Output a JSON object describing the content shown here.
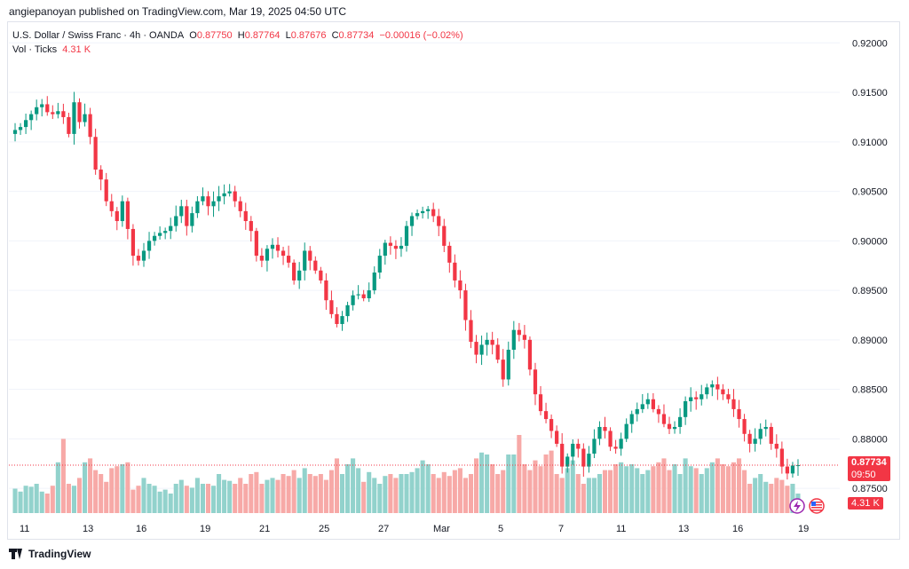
{
  "publisher_line": "angiepanoyan published on TradingView.com, Mar 19, 2025 04:50 UTC",
  "legend": {
    "symbol": "U.S. Dollar / Swiss Franc · 4h · OANDA",
    "o_label": "O",
    "o_value": "0.87750",
    "h_label": "H",
    "h_value": "0.87764",
    "l_label": "L",
    "l_value": "0.87676",
    "c_label": "C",
    "c_value": "0.87734",
    "change": "−0.00016 (−0.02%)",
    "vol_label": "Vol · Ticks",
    "vol_value": "4.31 K"
  },
  "footer": {
    "brand": "TradingView"
  },
  "badges": {
    "price": "0.87734",
    "time": "09:50",
    "volume": "4.31 K"
  },
  "colors": {
    "up": "#089981",
    "down": "#f23645",
    "up_vol": "#92d2cc",
    "down_vol": "#f7a9a7",
    "grid": "#f0f3fa"
  },
  "icons": [
    "lightning-icon",
    "us-flag-icon"
  ],
  "chart_data": {
    "type": "candlestick",
    "timeframe": "4h",
    "y_axis": {
      "ylim": [
        0.8725,
        0.922
      ],
      "ticks": [
        "0.92000",
        "0.91500",
        "0.91000",
        "0.90500",
        "0.90000",
        "0.89500",
        "0.89000",
        "0.88500",
        "0.88000",
        "0.87500"
      ]
    },
    "x_axis": {
      "ticks": [
        "11",
        "13",
        "16",
        "19",
        "21",
        "25",
        "27",
        "Mar",
        "5",
        "7",
        "11",
        "13",
        "16",
        "19"
      ]
    },
    "last_price": 0.87734,
    "close_path": [
      0.9112,
      0.9115,
      0.9122,
      0.9128,
      0.9135,
      0.9138,
      0.913,
      0.9128,
      0.9131,
      0.9125,
      0.9108,
      0.914,
      0.912,
      0.9128,
      0.9105,
      0.9072,
      0.9062,
      0.904,
      0.903,
      0.902,
      0.904,
      0.9012,
      0.8985,
      0.898,
      0.899,
      0.9,
      0.9005,
      0.9008,
      0.901,
      0.9015,
      0.9025,
      0.9035,
      0.9015,
      0.9028,
      0.904,
      0.9045,
      0.9035,
      0.904,
      0.9045,
      0.9048,
      0.905,
      0.904,
      0.903,
      0.902,
      0.901,
      0.8985,
      0.898,
      0.8992,
      0.8996,
      0.899,
      0.8985,
      0.8978,
      0.896,
      0.897,
      0.899,
      0.898,
      0.897,
      0.896,
      0.894,
      0.8926,
      0.8916,
      0.8924,
      0.8935,
      0.8945,
      0.8946,
      0.8942,
      0.895,
      0.8968,
      0.8985,
      0.8998,
      0.8995,
      0.8992,
      0.8995,
      0.9015,
      0.9025,
      0.9028,
      0.903,
      0.9032,
      0.9025,
      0.9015,
      0.8995,
      0.8978,
      0.896,
      0.895,
      0.892,
      0.8898,
      0.8885,
      0.8895,
      0.89,
      0.8895,
      0.888,
      0.886,
      0.889,
      0.891,
      0.8905,
      0.89,
      0.887,
      0.8845,
      0.8828,
      0.882,
      0.8808,
      0.8795,
      0.8772,
      0.8782,
      0.8795,
      0.879,
      0.8772,
      0.8785,
      0.88,
      0.8812,
      0.8808,
      0.8792,
      0.879,
      0.88,
      0.8815,
      0.8825,
      0.883,
      0.8835,
      0.884,
      0.883,
      0.8825,
      0.8815,
      0.881,
      0.8812,
      0.8822,
      0.8838,
      0.8842,
      0.884,
      0.8845,
      0.8852,
      0.8855,
      0.885,
      0.8845,
      0.884,
      0.883,
      0.882,
      0.8805,
      0.8795,
      0.88,
      0.881,
      0.8812,
      0.8795,
      0.879,
      0.8772,
      0.8765,
      0.8773,
      0.87734
    ],
    "volume_relative": [
      0.25,
      0.22,
      0.28,
      0.27,
      0.3,
      0.22,
      0.2,
      0.28,
      0.52,
      0.76,
      0.3,
      0.28,
      0.36,
      0.52,
      0.56,
      0.44,
      0.4,
      0.32,
      0.46,
      0.48,
      0.5,
      0.52,
      0.24,
      0.28,
      0.36,
      0.3,
      0.28,
      0.22,
      0.24,
      0.2,
      0.3,
      0.34,
      0.28,
      0.26,
      0.36,
      0.3,
      0.3,
      0.28,
      0.4,
      0.34,
      0.33,
      0.3,
      0.36,
      0.3,
      0.4,
      0.42,
      0.3,
      0.34,
      0.36,
      0.34,
      0.4,
      0.38,
      0.44,
      0.36,
      0.46,
      0.4,
      0.38,
      0.4,
      0.34,
      0.44,
      0.56,
      0.4,
      0.5,
      0.56,
      0.46,
      0.32,
      0.42,
      0.36,
      0.3,
      0.38,
      0.4,
      0.36,
      0.4,
      0.4,
      0.42,
      0.46,
      0.54,
      0.5,
      0.4,
      0.36,
      0.42,
      0.38,
      0.44,
      0.46,
      0.36,
      0.4,
      0.56,
      0.62,
      0.6,
      0.5,
      0.4,
      0.44,
      0.6,
      0.6,
      0.8,
      0.5,
      0.44,
      0.54,
      0.48,
      0.6,
      0.64,
      0.4,
      0.36,
      0.46,
      0.54,
      0.4,
      0.3,
      0.36,
      0.36,
      0.4,
      0.44,
      0.44,
      0.5,
      0.52,
      0.48,
      0.5,
      0.46,
      0.4,
      0.44,
      0.48,
      0.52,
      0.56,
      0.44,
      0.5,
      0.4,
      0.56,
      0.48,
      0.46,
      0.4,
      0.46,
      0.52,
      0.56,
      0.5,
      0.48,
      0.52,
      0.56,
      0.44,
      0.3,
      0.36,
      0.4,
      0.32,
      0.3,
      0.36,
      0.34,
      0.28,
      0.3,
      0.2
    ]
  }
}
